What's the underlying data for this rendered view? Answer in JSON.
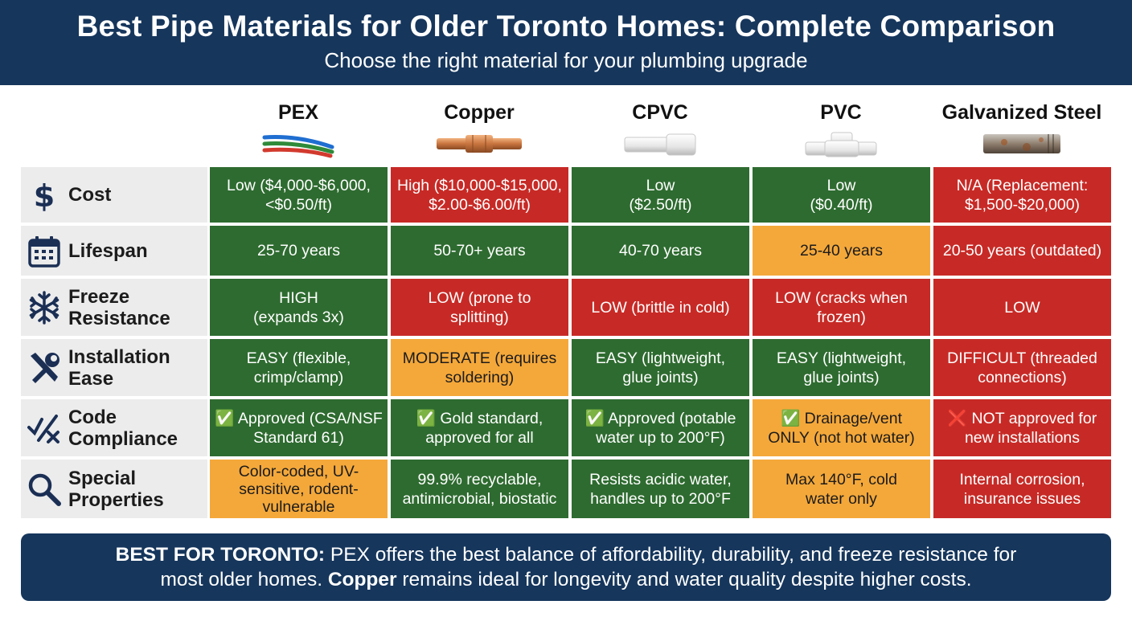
{
  "header": {
    "title": "Best Pipe Materials for Older Toronto Homes: Complete Comparison",
    "subtitle": "Choose the right material for your plumbing upgrade"
  },
  "columns": [
    {
      "name": "PEX",
      "icon": "pex-tubes-icon"
    },
    {
      "name": "Copper",
      "icon": "copper-pipe-icon"
    },
    {
      "name": "CPVC",
      "icon": "cpvc-pipe-icon"
    },
    {
      "name": "PVC",
      "icon": "pvc-tee-icon"
    },
    {
      "name": "Galvanized Steel",
      "icon": "galvanized-pipe-icon"
    }
  ],
  "rows": [
    {
      "label_lines": [
        "Cost"
      ],
      "icon": "dollar-icon",
      "cells": [
        {
          "text": "Low ($4,000-$6,000,\n<$0.50/ft)",
          "rating": "green"
        },
        {
          "text": "High ($10,000-$15,000,\n$2.00-$6.00/ft)",
          "rating": "red"
        },
        {
          "text": "Low\n($2.50/ft)",
          "rating": "green"
        },
        {
          "text": "Low\n($0.40/ft)",
          "rating": "green"
        },
        {
          "text": "N/A (Replacement:\n$1,500-$20,000)",
          "rating": "red"
        }
      ]
    },
    {
      "label_lines": [
        "Lifespan"
      ],
      "icon": "calendar-icon",
      "cells": [
        {
          "text": "25-70 years",
          "rating": "green"
        },
        {
          "text": "50-70+ years",
          "rating": "green"
        },
        {
          "text": "40-70 years",
          "rating": "green"
        },
        {
          "text": "25-40 years",
          "rating": "orange"
        },
        {
          "text": "20-50 years (outdated)",
          "rating": "red"
        }
      ]
    },
    {
      "label_lines": [
        "Freeze",
        "Resistance"
      ],
      "icon": "snowflake-icon",
      "cells": [
        {
          "text": "HIGH\n(expands 3x)",
          "rating": "green"
        },
        {
          "text": "LOW (prone to\nsplitting)",
          "rating": "red"
        },
        {
          "text": "LOW (brittle in cold)",
          "rating": "red"
        },
        {
          "text": "LOW (cracks when\nfrozen)",
          "rating": "red"
        },
        {
          "text": "LOW",
          "rating": "red"
        }
      ]
    },
    {
      "label_lines": [
        "Installation",
        "Ease"
      ],
      "icon": "tools-icon",
      "cells": [
        {
          "text": "EASY (flexible,\ncrimp/clamp)",
          "rating": "green"
        },
        {
          "text": "MODERATE (requires\nsoldering)",
          "rating": "orange"
        },
        {
          "text": "EASY (lightweight,\nglue joints)",
          "rating": "green"
        },
        {
          "text": "EASY (lightweight,\nglue joints)",
          "rating": "green"
        },
        {
          "text": "DIFFICULT (threaded\nconnections)",
          "rating": "red"
        }
      ]
    },
    {
      "label_lines": [
        "Code",
        "Compliance"
      ],
      "icon": "check-cross-icon",
      "cells": [
        {
          "text": "✅ Approved (CSA/NSF\nStandard 61)",
          "rating": "green"
        },
        {
          "text": "✅ Gold standard,\napproved for all",
          "rating": "green"
        },
        {
          "text": "✅ Approved (potable\nwater up to 200°F)",
          "rating": "green"
        },
        {
          "text": "✅ Drainage/vent\nONLY (not hot water)",
          "rating": "orange"
        },
        {
          "text": "❌ NOT approved for\nnew installations",
          "rating": "red"
        }
      ]
    },
    {
      "label_lines": [
        "Special",
        "Properties"
      ],
      "icon": "magnifier-icon",
      "cells": [
        {
          "text": "Color-coded, UV-\nsensitive, rodent-\nvulnerable",
          "rating": "orange"
        },
        {
          "text": "99.9% recyclable,\nantimicrobial, biostatic",
          "rating": "green"
        },
        {
          "text": "Resists acidic water,\nhandles up to 200°F",
          "rating": "green"
        },
        {
          "text": "Max 140°F, cold\nwater only",
          "rating": "orange"
        },
        {
          "text": "Internal corrosion,\ninsurance issues",
          "rating": "red"
        }
      ]
    }
  ],
  "footer": {
    "line1_bold": "BEST FOR TORONTO:",
    "line1_rest": " PEX offers the best balance of affordability, durability, and freeze resistance for",
    "line2_bold": "Copper",
    "line2_rest": " remains ideal for longevity and water quality despite higher costs.",
    "line2_lead": "most older homes. "
  },
  "colors": {
    "navy": "#16365c",
    "green": "#2e6b30",
    "red": "#c72a26",
    "orange": "#f4a83a",
    "label_bg": "#ececec"
  }
}
